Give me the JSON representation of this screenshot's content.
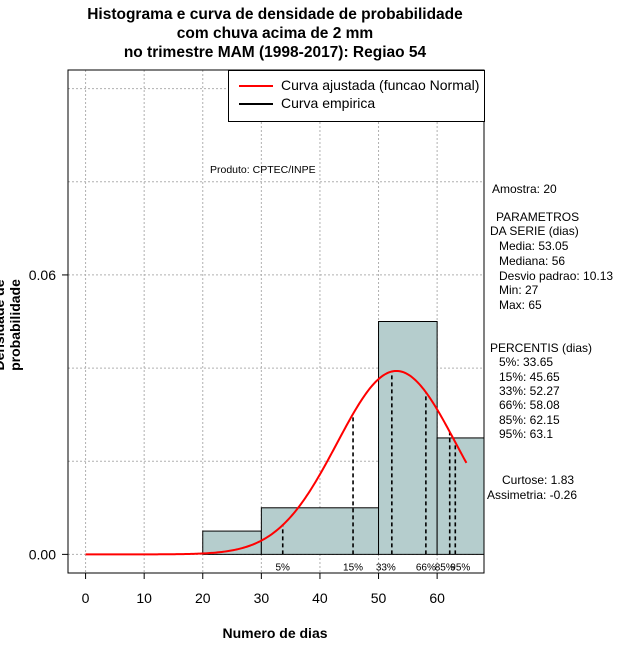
{
  "chart_data": {
    "type": "bar",
    "title": [
      "Histograma e curva de densidade de probabilidade",
      "com chuva acima de 2 mm",
      "no trimestre MAM (1998-2017): Regiao 54"
    ],
    "xlabel": "Numero de dias",
    "ylabel": "Densidade de probabilidade",
    "xlim": [
      -3,
      68
    ],
    "ylim": [
      -0.004,
      0.104
    ],
    "x_ticks": [
      0,
      10,
      20,
      30,
      40,
      50,
      60
    ],
    "y_ticks": [
      0.0,
      0.06
    ],
    "y_tick_labels": [
      "0.00",
      "0.06"
    ],
    "bins": [
      {
        "from": 20,
        "to": 30,
        "density": 0.005
      },
      {
        "from": 30,
        "to": 50,
        "density": 0.01
      },
      {
        "from": 50,
        "to": 60,
        "density": 0.05
      },
      {
        "from": 60,
        "to": 70,
        "density": 0.025
      }
    ],
    "normal_fit": {
      "mean": 53.05,
      "sd": 10.13,
      "from": 0,
      "to": 65
    },
    "percentiles": [
      {
        "label": "5%",
        "x": 33.65
      },
      {
        "label": "15%",
        "x": 45.65
      },
      {
        "label": "33%",
        "x": 52.27
      },
      {
        "label": "66%",
        "x": 58.08
      },
      {
        "label": "85%",
        "x": 62.15
      },
      {
        "label": "95%",
        "x": 63.1
      }
    ],
    "legend": [
      {
        "label": "Curva ajustada (funcao Normal)",
        "color": "#ff0000"
      },
      {
        "label": "Curva empirica",
        "color": "#000000"
      }
    ],
    "colors": {
      "bar_fill": "#b5cdcd",
      "curve": "#ff0000",
      "grid": "#b0b0b0"
    }
  },
  "product_label": "Produto: CPTEC/INPE",
  "stats": {
    "amostra": "Amostra: 20",
    "param_header": [
      "PARAMETROS",
      "DA SERIE (dias)"
    ],
    "params": [
      "Media: 53.05",
      "Mediana: 56",
      "Desvio padrao: 10.13",
      "Min: 27",
      "Max: 65"
    ],
    "perc_header": "PERCENTIS (dias)",
    "percs": [
      "5%: 33.65",
      "15%: 45.65",
      "33%: 52.27",
      "66%: 58.08",
      "85%: 62.15",
      "95%: 63.1"
    ],
    "curtose": "Curtose: 1.83",
    "assimetria": "Assimetria: -0.26"
  }
}
